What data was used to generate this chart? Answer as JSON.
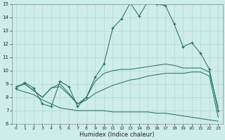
{
  "xlabel": "Humidex (Indice chaleur)",
  "bg_color": "#ceecea",
  "grid_color": "#b0d8d4",
  "line_color": "#1a6b60",
  "xlim": [
    -0.5,
    23.5
  ],
  "ylim": [
    6,
    15
  ],
  "xticks": [
    0,
    1,
    2,
    3,
    4,
    5,
    6,
    7,
    8,
    9,
    10,
    11,
    12,
    13,
    14,
    15,
    16,
    17,
    18,
    19,
    20,
    21,
    22,
    23
  ],
  "yticks": [
    6,
    7,
    8,
    9,
    10,
    11,
    12,
    13,
    14,
    15
  ],
  "series": [
    {
      "x": [
        0,
        1,
        2,
        3,
        4,
        5,
        6,
        7,
        8,
        9,
        10,
        11,
        12,
        13,
        14,
        15,
        16,
        17,
        18,
        19,
        20,
        21,
        22,
        23
      ],
      "y": [
        8.7,
        9.1,
        8.7,
        7.5,
        7.3,
        9.2,
        8.8,
        7.3,
        8.0,
        9.5,
        10.5,
        13.2,
        13.9,
        15.1,
        14.1,
        15.2,
        15.0,
        14.9,
        13.5,
        11.8,
        12.1,
        11.3,
        10.1,
        7.0
      ],
      "marker": "+"
    },
    {
      "x": [
        0,
        1,
        2,
        3,
        4,
        5,
        6,
        7,
        8,
        9,
        10,
        11,
        12,
        13,
        14,
        15,
        16,
        17,
        18,
        19,
        20,
        21,
        22,
        23
      ],
      "y": [
        8.8,
        9.0,
        8.5,
        8.0,
        8.7,
        9.0,
        8.3,
        7.5,
        8.0,
        9.2,
        9.8,
        10.0,
        10.1,
        10.1,
        10.2,
        10.3,
        10.4,
        10.5,
        10.4,
        10.2,
        10.2,
        10.2,
        9.9,
        7.2
      ],
      "marker": null
    },
    {
      "x": [
        0,
        1,
        2,
        3,
        4,
        5,
        6,
        7,
        8,
        9,
        10,
        11,
        12,
        13,
        14,
        15,
        16,
        17,
        18,
        19,
        20,
        21,
        22,
        23
      ],
      "y": [
        8.8,
        9.0,
        8.5,
        8.0,
        8.7,
        8.8,
        8.2,
        7.5,
        7.8,
        8.3,
        8.6,
        8.9,
        9.1,
        9.3,
        9.4,
        9.6,
        9.7,
        9.8,
        9.8,
        9.8,
        9.9,
        9.9,
        9.6,
        6.5
      ],
      "marker": null
    },
    {
      "x": [
        0,
        1,
        2,
        3,
        4,
        5,
        6,
        7,
        8,
        9,
        10,
        11,
        12,
        13,
        14,
        15,
        16,
        17,
        18,
        19,
        20,
        21,
        22,
        23
      ],
      "y": [
        8.6,
        8.4,
        8.2,
        7.8,
        7.5,
        7.2,
        7.1,
        7.0,
        7.0,
        7.0,
        7.0,
        6.9,
        6.9,
        6.9,
        6.9,
        6.9,
        6.8,
        6.8,
        6.7,
        6.6,
        6.5,
        6.4,
        6.3,
        6.2
      ],
      "marker": null
    }
  ]
}
